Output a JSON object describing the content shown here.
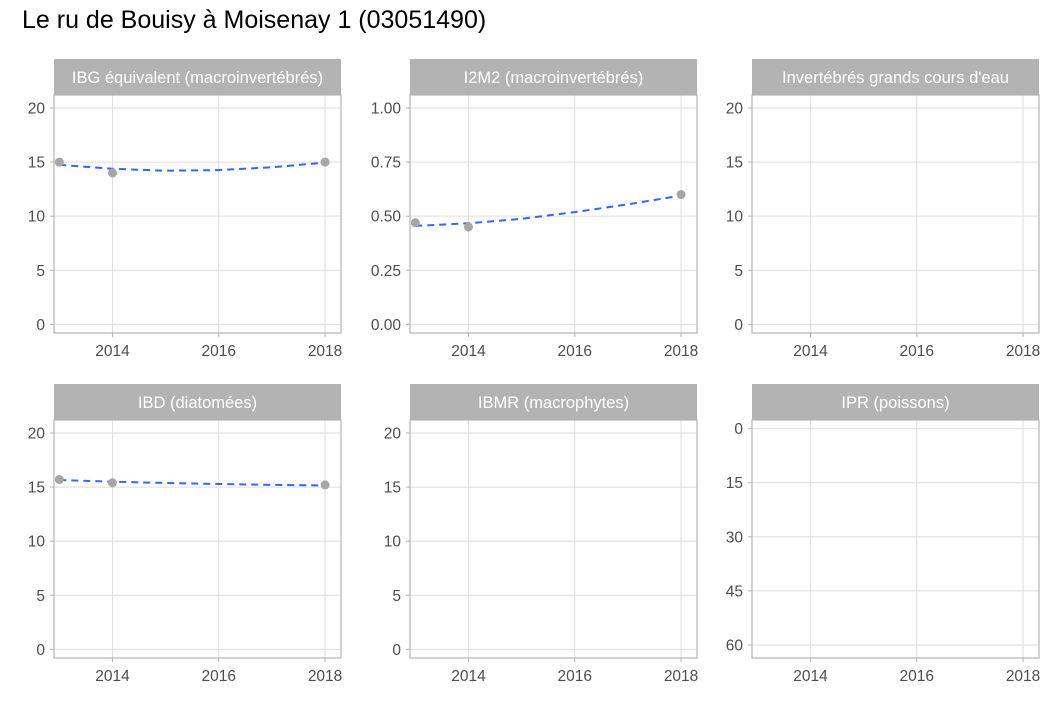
{
  "title": "Le ru de Bouisy à Moisenay 1 (03051490)",
  "colors": {
    "strip": "#b3b3b3",
    "grid": "#dedede",
    "panel_border": "#b3b3b3",
    "axis_text": "#4d4d4d",
    "point": "#a6a6a6",
    "trend": "#3366ff"
  },
  "chart_data": [
    {
      "type": "scatter",
      "title": "IBG équivalent (macroinvertébrés)",
      "trend": "smooth dashed",
      "xlim": [
        2012.9,
        2018.3
      ],
      "x_ticks": [
        2014,
        2016,
        2018
      ],
      "ylim": [
        -0.8,
        21.2
      ],
      "y_ticks": [
        0,
        5,
        10,
        15,
        20
      ],
      "y_tick_labels": [
        "0",
        "5",
        "10",
        "15",
        "20"
      ],
      "points": [
        {
          "x": 2013,
          "y": 15
        },
        {
          "x": 2014,
          "y": 14
        },
        {
          "x": 2018,
          "y": 15
        }
      ],
      "smooth": [
        {
          "x": 2013,
          "y": 14.75
        },
        {
          "x": 2014,
          "y": 14.38
        },
        {
          "x": 2015,
          "y": 14.2
        },
        {
          "x": 2016,
          "y": 14.26
        },
        {
          "x": 2017,
          "y": 14.52
        },
        {
          "x": 2018,
          "y": 14.95
        }
      ]
    },
    {
      "type": "scatter",
      "title": "I2M2 (macroinvertébrés)",
      "trend": "smooth dashed",
      "xlim": [
        2012.9,
        2018.3
      ],
      "x_ticks": [
        2014,
        2016,
        2018
      ],
      "ylim": [
        -0.04,
        1.06
      ],
      "y_ticks": [
        0,
        0.25,
        0.5,
        0.75,
        1
      ],
      "y_tick_labels": [
        "0.00",
        "0.25",
        "0.50",
        "0.75",
        "1.00"
      ],
      "points": [
        {
          "x": 2013,
          "y": 0.47
        },
        {
          "x": 2014,
          "y": 0.45
        },
        {
          "x": 2018,
          "y": 0.6
        }
      ],
      "smooth": [
        {
          "x": 2013,
          "y": 0.455
        },
        {
          "x": 2014,
          "y": 0.467
        },
        {
          "x": 2015,
          "y": 0.488
        },
        {
          "x": 2016,
          "y": 0.519
        },
        {
          "x": 2017,
          "y": 0.555
        },
        {
          "x": 2018,
          "y": 0.595
        }
      ]
    },
    {
      "type": "scatter",
      "title": "Invertébrés grands cours d'eau",
      "xlim": [
        2012.9,
        2018.3
      ],
      "x_ticks": [
        2014,
        2016,
        2018
      ],
      "ylim": [
        -0.8,
        21.2
      ],
      "y_ticks": [
        0,
        5,
        10,
        15,
        20
      ],
      "y_tick_labels": [
        "0",
        "5",
        "10",
        "15",
        "20"
      ],
      "points": []
    },
    {
      "type": "scatter",
      "title": "IBD (diatomées)",
      "trend": "smooth dashed",
      "xlim": [
        2012.9,
        2018.3
      ],
      "x_ticks": [
        2014,
        2016,
        2018
      ],
      "ylim": [
        -0.8,
        21.2
      ],
      "y_ticks": [
        0,
        5,
        10,
        15,
        20
      ],
      "y_tick_labels": [
        "0",
        "5",
        "10",
        "15",
        "20"
      ],
      "points": [
        {
          "x": 2013,
          "y": 15.7
        },
        {
          "x": 2014,
          "y": 15.4
        },
        {
          "x": 2018,
          "y": 15.2
        }
      ],
      "smooth": [
        {
          "x": 2013,
          "y": 15.65
        },
        {
          "x": 2014,
          "y": 15.5
        },
        {
          "x": 2015,
          "y": 15.38
        },
        {
          "x": 2016,
          "y": 15.28
        },
        {
          "x": 2017,
          "y": 15.2
        },
        {
          "x": 2018,
          "y": 15.15
        }
      ]
    },
    {
      "type": "scatter",
      "title": "IBMR (macrophytes)",
      "xlim": [
        2012.9,
        2018.3
      ],
      "x_ticks": [
        2014,
        2016,
        2018
      ],
      "ylim": [
        -0.8,
        21.2
      ],
      "y_ticks": [
        0,
        5,
        10,
        15,
        20
      ],
      "y_tick_labels": [
        "0",
        "5",
        "10",
        "15",
        "20"
      ],
      "points": []
    },
    {
      "type": "scatter",
      "title": "IPR (poissons)",
      "y_reversed": true,
      "xlim": [
        2012.9,
        2018.3
      ],
      "x_ticks": [
        2014,
        2016,
        2018
      ],
      "ylim": [
        -2.4,
        63.6
      ],
      "y_ticks": [
        0,
        15,
        30,
        45,
        60
      ],
      "y_tick_labels": [
        "0",
        "15",
        "30",
        "45",
        "60"
      ],
      "points": []
    }
  ]
}
